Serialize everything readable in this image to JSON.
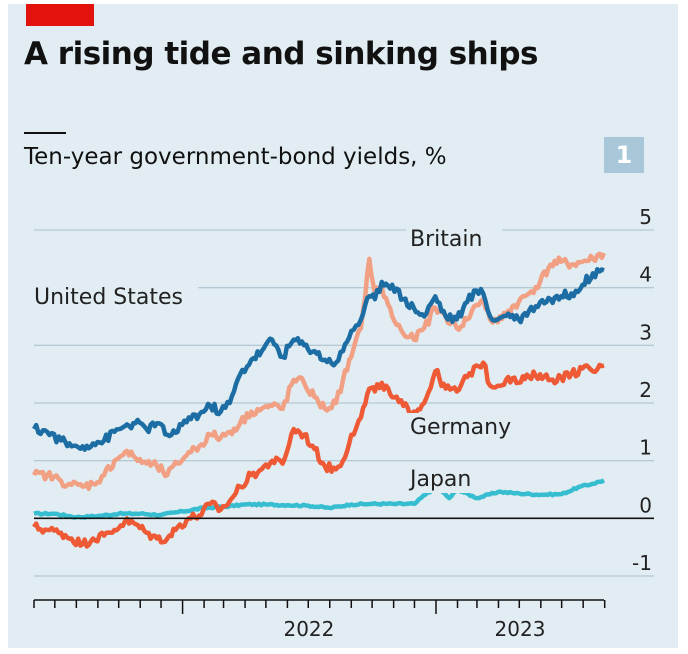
{
  "headline": "A rising tide and sinking ships",
  "badge": "1",
  "chart_data": {
    "type": "line",
    "title": "Ten-year government-bond yields, %",
    "ylim": [
      -1,
      5
    ],
    "yticks": [
      5,
      4,
      3,
      2,
      1,
      0,
      -1
    ],
    "xlim": [
      "2021-06-01",
      "2023-08-31"
    ],
    "xticks": [
      "2022",
      "2023"
    ],
    "grid": true,
    "legend": "inline labels",
    "series": [
      {
        "name": "Britain",
        "color": "#f2a084",
        "x": [
          "2021-06-01",
          "2021-06-20",
          "2021-07-10",
          "2021-07-25",
          "2021-08-10",
          "2021-08-25",
          "2021-09-10",
          "2021-09-25",
          "2021-10-10",
          "2021-10-25",
          "2021-11-10",
          "2021-11-25",
          "2021-12-10",
          "2021-12-25",
          "2022-01-10",
          "2022-01-25",
          "2022-02-10",
          "2022-02-25",
          "2022-03-10",
          "2022-03-25",
          "2022-04-10",
          "2022-04-25",
          "2022-05-10",
          "2022-05-25",
          "2022-06-10",
          "2022-06-25",
          "2022-07-10",
          "2022-07-25",
          "2022-08-10",
          "2022-08-20",
          "2022-09-01",
          "2022-09-15",
          "2022-09-27",
          "2022-10-05",
          "2022-10-15",
          "2022-10-30",
          "2022-11-15",
          "2022-11-30",
          "2022-12-15",
          "2022-12-31",
          "2023-01-15",
          "2023-01-31",
          "2023-02-15",
          "2023-02-28",
          "2023-03-10",
          "2023-03-20",
          "2023-03-31",
          "2023-04-15",
          "2023-04-30",
          "2023-05-15",
          "2023-05-31",
          "2023-06-15",
          "2023-06-30",
          "2023-07-15",
          "2023-07-31",
          "2023-08-15",
          "2023-08-31"
        ],
        "y": [
          0.75,
          0.75,
          0.65,
          0.58,
          0.55,
          0.6,
          0.75,
          1.0,
          1.15,
          1.05,
          0.95,
          0.9,
          0.75,
          0.95,
          1.15,
          1.25,
          1.45,
          1.4,
          1.5,
          1.65,
          1.85,
          1.9,
          1.95,
          1.9,
          2.4,
          2.35,
          2.1,
          1.9,
          2.0,
          2.4,
          2.8,
          3.3,
          4.5,
          3.9,
          4.0,
          3.5,
          3.2,
          3.1,
          3.3,
          3.65,
          3.5,
          3.3,
          3.45,
          3.7,
          3.8,
          3.45,
          3.4,
          3.6,
          3.75,
          3.9,
          4.1,
          4.4,
          4.45,
          4.4,
          4.45,
          4.5,
          4.6
        ]
      },
      {
        "name": "United States",
        "color": "#1c6da3",
        "x": [
          "2021-06-01",
          "2021-06-20",
          "2021-07-10",
          "2021-07-25",
          "2021-08-10",
          "2021-08-25",
          "2021-09-10",
          "2021-09-25",
          "2021-10-10",
          "2021-10-25",
          "2021-11-10",
          "2021-11-25",
          "2021-12-10",
          "2021-12-25",
          "2022-01-10",
          "2022-01-25",
          "2022-02-10",
          "2022-02-25",
          "2022-03-10",
          "2022-03-25",
          "2022-04-10",
          "2022-04-25",
          "2022-05-10",
          "2022-05-25",
          "2022-06-10",
          "2022-06-25",
          "2022-07-10",
          "2022-07-25",
          "2022-08-10",
          "2022-08-20",
          "2022-09-01",
          "2022-09-15",
          "2022-09-27",
          "2022-10-05",
          "2022-10-15",
          "2022-10-30",
          "2022-11-15",
          "2022-11-30",
          "2022-12-15",
          "2022-12-31",
          "2023-01-15",
          "2023-01-31",
          "2023-02-15",
          "2023-02-28",
          "2023-03-10",
          "2023-03-20",
          "2023-03-31",
          "2023-04-15",
          "2023-04-30",
          "2023-05-15",
          "2023-05-31",
          "2023-06-15",
          "2023-06-30",
          "2023-07-15",
          "2023-07-31",
          "2023-08-15",
          "2023-08-31"
        ],
        "y": [
          1.55,
          1.5,
          1.35,
          1.25,
          1.25,
          1.3,
          1.35,
          1.5,
          1.6,
          1.65,
          1.55,
          1.65,
          1.45,
          1.5,
          1.75,
          1.8,
          1.95,
          1.85,
          2.0,
          2.5,
          2.75,
          2.9,
          3.1,
          2.8,
          3.1,
          3.0,
          2.9,
          2.75,
          2.7,
          2.9,
          3.25,
          3.45,
          3.85,
          3.8,
          4.1,
          4.05,
          3.8,
          3.65,
          3.5,
          3.85,
          3.5,
          3.45,
          3.75,
          3.95,
          3.9,
          3.5,
          3.45,
          3.55,
          3.45,
          3.6,
          3.75,
          3.8,
          3.85,
          3.9,
          4.05,
          4.25,
          4.3
        ]
      },
      {
        "name": "Germany",
        "color": "#ef5a36",
        "x": [
          "2021-06-01",
          "2021-06-20",
          "2021-07-10",
          "2021-07-25",
          "2021-08-10",
          "2021-08-25",
          "2021-09-10",
          "2021-09-25",
          "2021-10-10",
          "2021-10-25",
          "2021-11-10",
          "2021-11-25",
          "2021-12-10",
          "2021-12-25",
          "2022-01-10",
          "2022-01-25",
          "2022-02-10",
          "2022-02-25",
          "2022-03-10",
          "2022-03-25",
          "2022-04-10",
          "2022-04-25",
          "2022-05-10",
          "2022-05-25",
          "2022-06-10",
          "2022-06-25",
          "2022-07-10",
          "2022-07-25",
          "2022-08-10",
          "2022-08-20",
          "2022-09-01",
          "2022-09-15",
          "2022-09-27",
          "2022-10-05",
          "2022-10-15",
          "2022-10-30",
          "2022-11-15",
          "2022-11-30",
          "2022-12-15",
          "2022-12-31",
          "2023-01-15",
          "2023-01-31",
          "2023-02-15",
          "2023-02-28",
          "2023-03-10",
          "2023-03-20",
          "2023-03-31",
          "2023-04-15",
          "2023-04-30",
          "2023-05-15",
          "2023-05-31",
          "2023-06-15",
          "2023-06-30",
          "2023-07-15",
          "2023-07-31",
          "2023-08-15",
          "2023-08-31"
        ],
        "y": [
          -0.15,
          -0.2,
          -0.25,
          -0.35,
          -0.45,
          -0.35,
          -0.3,
          -0.2,
          -0.05,
          -0.1,
          -0.25,
          -0.35,
          -0.35,
          -0.15,
          0.0,
          0.05,
          0.25,
          0.15,
          0.3,
          0.55,
          0.75,
          0.85,
          1.0,
          0.95,
          1.55,
          1.45,
          1.2,
          0.9,
          0.85,
          1.0,
          1.45,
          1.75,
          2.25,
          2.2,
          2.35,
          2.1,
          1.95,
          1.85,
          2.0,
          2.55,
          2.25,
          2.2,
          2.45,
          2.65,
          2.7,
          2.3,
          2.3,
          2.45,
          2.35,
          2.45,
          2.5,
          2.4,
          2.45,
          2.5,
          2.6,
          2.55,
          2.65
        ]
      },
      {
        "name": "Japan",
        "color": "#36bdd0",
        "x": [
          "2021-06-01",
          "2021-07-01",
          "2021-08-01",
          "2021-09-01",
          "2021-10-01",
          "2021-11-01",
          "2021-12-01",
          "2022-01-01",
          "2022-02-01",
          "2022-03-01",
          "2022-04-01",
          "2022-05-01",
          "2022-06-01",
          "2022-07-01",
          "2022-08-01",
          "2022-09-01",
          "2022-10-01",
          "2022-11-01",
          "2022-12-01",
          "2022-12-20",
          "2023-01-05",
          "2023-01-20",
          "2023-02-01",
          "2023-03-01",
          "2023-04-01",
          "2023-05-01",
          "2023-06-01",
          "2023-07-01",
          "2023-07-28",
          "2023-08-15",
          "2023-08-31"
        ],
        "y": [
          0.08,
          0.08,
          0.02,
          0.04,
          0.08,
          0.08,
          0.06,
          0.12,
          0.18,
          0.2,
          0.24,
          0.24,
          0.23,
          0.22,
          0.18,
          0.24,
          0.25,
          0.25,
          0.25,
          0.45,
          0.52,
          0.35,
          0.5,
          0.35,
          0.46,
          0.43,
          0.41,
          0.42,
          0.55,
          0.6,
          0.66
        ]
      }
    ],
    "labels": [
      "Britain",
      "United States",
      "Germany",
      "Japan"
    ]
  }
}
